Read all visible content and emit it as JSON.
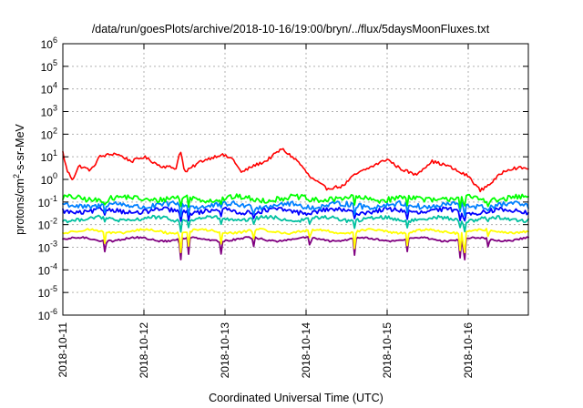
{
  "chart_data": {
    "type": "line",
    "title": "/data/run/goesPlots/archive/2018-10-16/19:00/bryn/../flux/5daysMoonFluxes.txt",
    "xlabel": "Coordinated Universal Time (UTC)",
    "ylabel_parts": [
      "protons/cm",
      "2",
      "-s-sr-MeV"
    ],
    "y_scale": "log",
    "ylim_exponents": [
      -6,
      6
    ],
    "y_ticks": [
      {
        "base": "10",
        "exp": "6"
      },
      {
        "base": "10",
        "exp": "5"
      },
      {
        "base": "10",
        "exp": "4"
      },
      {
        "base": "10",
        "exp": "3"
      },
      {
        "base": "10",
        "exp": "2"
      },
      {
        "base": "10",
        "exp": "1"
      },
      {
        "base": "10",
        "exp": "0"
      },
      {
        "base": "10",
        "exp": "-1"
      },
      {
        "base": "10",
        "exp": "-2"
      },
      {
        "base": "10",
        "exp": "-3"
      },
      {
        "base": "10",
        "exp": "-4"
      },
      {
        "base": "10",
        "exp": "-5"
      },
      {
        "base": "10",
        "exp": "-6"
      }
    ],
    "x_range_days": [
      "2018-10-11",
      "2018-10-16"
    ],
    "x_ticks": [
      "2018-10-11",
      "2018-10-12",
      "2018-10-13",
      "2018-10-14",
      "2018-10-15",
      "2018-10-16"
    ],
    "grid": true,
    "series": [
      {
        "color": "#ff0000",
        "baseline_exp": 0.55,
        "noise": 0.07,
        "points": [
          [
            0.0,
            1.2
          ],
          [
            0.05,
            0.4
          ],
          [
            0.12,
            0.0
          ],
          [
            0.2,
            0.6
          ],
          [
            0.35,
            0.4
          ],
          [
            0.45,
            1.0
          ],
          [
            0.65,
            1.15
          ],
          [
            0.85,
            0.8
          ],
          [
            1.0,
            1.0
          ],
          [
            1.2,
            0.6
          ],
          [
            1.4,
            0.5
          ],
          [
            1.45,
            1.35
          ],
          [
            1.5,
            0.3
          ],
          [
            1.7,
            0.8
          ],
          [
            1.95,
            1.1
          ],
          [
            2.1,
            0.9
          ],
          [
            2.2,
            0.3
          ],
          [
            2.35,
            0.6
          ],
          [
            2.5,
            0.8
          ],
          [
            2.7,
            1.35
          ],
          [
            2.9,
            0.8
          ],
          [
            3.05,
            0.1
          ],
          [
            3.25,
            -0.4
          ],
          [
            3.45,
            -0.3
          ],
          [
            3.6,
            0.2
          ],
          [
            3.8,
            0.55
          ],
          [
            4.0,
            0.9
          ],
          [
            4.15,
            0.5
          ],
          [
            4.35,
            0.2
          ],
          [
            4.55,
            0.8
          ],
          [
            4.75,
            0.6
          ],
          [
            4.9,
            0.3
          ],
          [
            5.0,
            0.15
          ],
          [
            5.15,
            -0.5
          ],
          [
            5.3,
            -0.1
          ],
          [
            5.45,
            0.4
          ],
          [
            5.55,
            0.5
          ]
        ]
      },
      {
        "color": "#00ff00",
        "baseline_exp": -0.85,
        "noise": 0.12,
        "points": []
      },
      {
        "color": "#0080ff",
        "baseline_exp": -1.15,
        "noise": 0.12,
        "points": []
      },
      {
        "color": "#0000ff",
        "baseline_exp": -1.4,
        "noise": 0.1,
        "points": []
      },
      {
        "color": "#00c0a0",
        "baseline_exp": -1.75,
        "noise": 0.08,
        "points": []
      },
      {
        "color": "#ffff00",
        "baseline_exp": -2.3,
        "noise": 0.05,
        "points": []
      },
      {
        "color": "#800080",
        "baseline_exp": -2.65,
        "noise": 0.04,
        "points": []
      }
    ],
    "dips": [
      [
        0.52,
        0.6
      ],
      [
        1.45,
        1.2
      ],
      [
        1.55,
        0.7
      ],
      [
        1.95,
        0.6
      ],
      [
        2.35,
        0.5
      ],
      [
        3.05,
        0.5
      ],
      [
        3.6,
        0.8
      ],
      [
        4.25,
        0.6
      ],
      [
        4.9,
        0.8
      ],
      [
        4.95,
        1.5
      ],
      [
        5.25,
        0.5
      ]
    ]
  }
}
